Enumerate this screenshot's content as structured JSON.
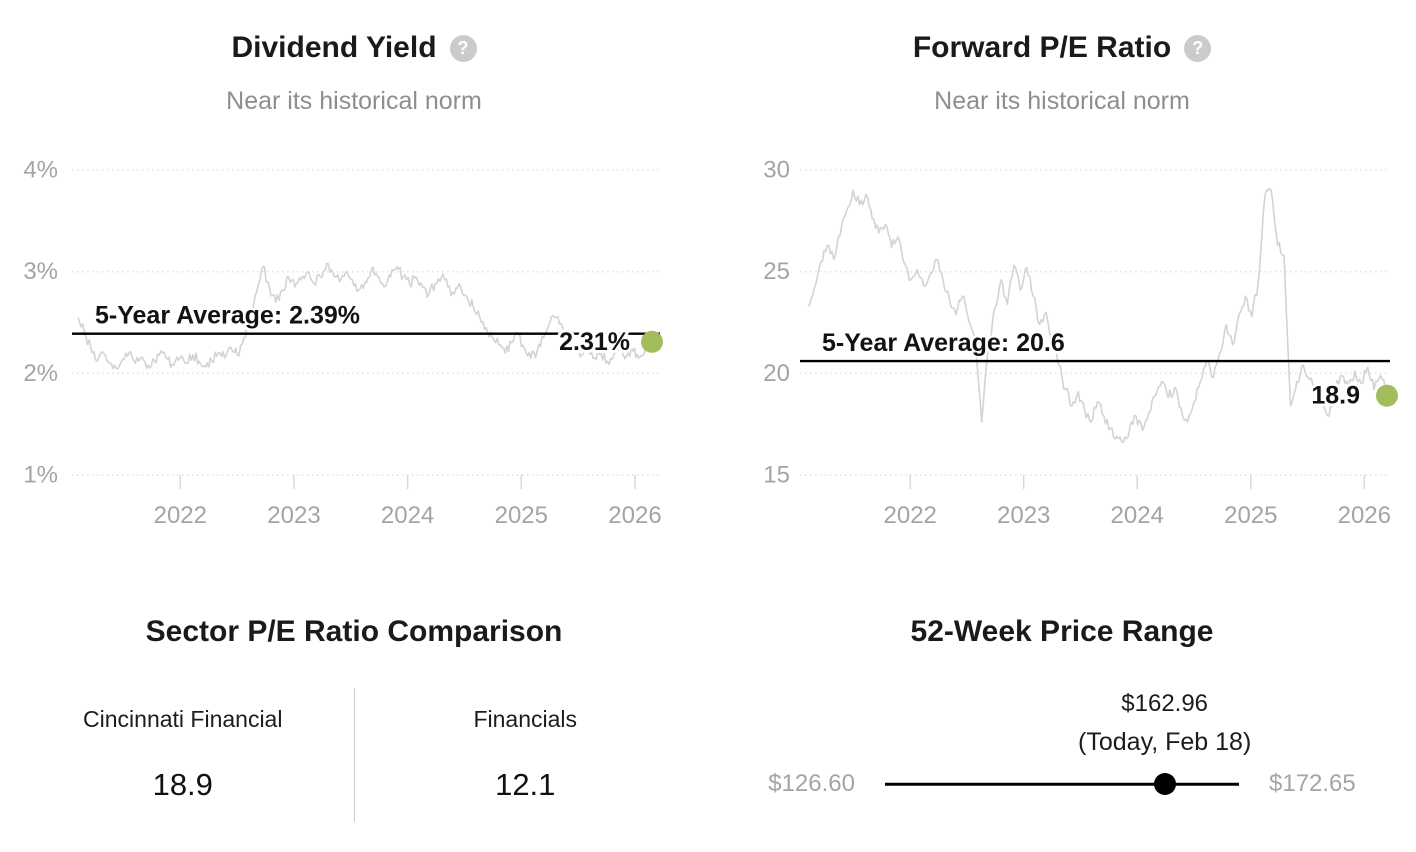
{
  "accent_green": "#a3bd5a",
  "chart_data": [
    {
      "type": "line",
      "title": "Dividend Yield",
      "subtitle": "Near its historical norm",
      "help_icon": "?",
      "x_ticks": [
        "2022",
        "2023",
        "2024",
        "2025",
        "2026"
      ],
      "x_tick_values": [
        2022,
        2023,
        2024,
        2025,
        2026
      ],
      "y_ticks": [
        "4%",
        "3%",
        "2%",
        "1%"
      ],
      "y_tick_values": [
        4,
        3,
        2,
        1
      ],
      "ylim": [
        1,
        4
      ],
      "x_range": [
        2021.1,
        2026.15
      ],
      "grid": "dotted-horizontal",
      "legend": "none",
      "average": {
        "label": "5-Year Average: 2.39%",
        "value": 2.39
      },
      "current": {
        "label": "2.31%",
        "value": 2.31
      },
      "line_color": "#d3d3d3",
      "dot_color": "#a3bd5a",
      "seed": 1,
      "values": [
        2.55,
        2.4,
        2.25,
        2.12,
        2.2,
        2.1,
        2.05,
        2.14,
        2.2,
        2.1,
        2.16,
        2.08,
        2.12,
        2.22,
        2.14,
        2.08,
        2.15,
        2.1,
        2.18,
        2.12,
        2.06,
        2.12,
        2.2,
        2.15,
        2.25,
        2.18,
        2.35,
        2.55,
        2.8,
        3.05,
        2.85,
        2.7,
        2.82,
        2.95,
        2.85,
        2.92,
        3.0,
        2.88,
        2.95,
        3.08,
        2.98,
        2.9,
        3.0,
        2.92,
        2.82,
        2.9,
        3.02,
        2.95,
        2.85,
        2.95,
        3.05,
        2.95,
        2.88,
        2.95,
        2.85,
        2.78,
        2.88,
        2.95,
        2.85,
        2.78,
        2.85,
        2.75,
        2.65,
        2.55,
        2.45,
        2.35,
        2.28,
        2.2,
        2.3,
        2.38,
        2.25,
        2.15,
        2.22,
        2.35,
        2.5,
        2.55,
        2.45,
        2.32,
        2.22,
        2.18,
        2.25,
        2.15,
        2.2,
        2.12,
        2.18,
        2.25,
        2.17,
        2.22,
        2.15,
        2.25,
        2.31
      ]
    },
    {
      "type": "line",
      "title": "Forward P/E Ratio",
      "subtitle": "Near its historical norm",
      "help_icon": "?",
      "x_ticks": [
        "2022",
        "2023",
        "2024",
        "2025",
        "2026"
      ],
      "x_tick_values": [
        2022,
        2023,
        2024,
        2025,
        2026
      ],
      "y_ticks": [
        "30",
        "25",
        "20",
        "15"
      ],
      "y_tick_values": [
        30,
        25,
        20,
        15
      ],
      "ylim": [
        15,
        30
      ],
      "x_range": [
        2021.1,
        2026.2
      ],
      "grid": "dotted-horizontal",
      "legend": "none",
      "average": {
        "label": "5-Year Average: 20.6",
        "value": 20.6
      },
      "current": {
        "label": "18.9",
        "value": 18.9
      },
      "line_color": "#d3d3d3",
      "dot_color": "#a3bd5a",
      "seed": 2,
      "values": [
        23.3,
        24.2,
        25.5,
        26.3,
        25.6,
        26.8,
        28.0,
        29.0,
        28.3,
        28.8,
        27.6,
        26.9,
        27.3,
        26.2,
        26.7,
        25.4,
        24.6,
        25.1,
        24.3,
        24.9,
        25.6,
        24.6,
        23.6,
        22.9,
        23.8,
        22.6,
        21.4,
        17.6,
        21.2,
        23.2,
        24.6,
        23.4,
        25.3,
        24.1,
        25.2,
        23.8,
        22.4,
        23.0,
        21.6,
        20.4,
        19.2,
        18.4,
        19.1,
        18.2,
        17.6,
        18.6,
        17.9,
        17.3,
        16.9,
        16.6,
        17.3,
        17.9,
        17.2,
        18.1,
        18.9,
        19.6,
        18.8,
        19.3,
        18.3,
        17.6,
        18.6,
        19.6,
        20.6,
        19.8,
        21.0,
        22.4,
        21.4,
        22.9,
        23.8,
        22.8,
        24.5,
        28.7,
        29.0,
        26.3,
        25.8,
        18.4,
        19.6,
        20.4,
        19.7,
        19.0,
        18.4,
        17.9,
        19.3,
        19.9,
        19.3,
        20.1,
        19.5,
        20.3,
        19.2,
        19.9,
        18.9
      ]
    },
    {
      "type": "table",
      "title": "Sector P/E Ratio Comparison",
      "columns": [
        {
          "label": "Cincinnati Financial",
          "value": "18.9"
        },
        {
          "label": "Financials",
          "value": "12.1"
        }
      ]
    },
    {
      "type": "range",
      "title": "52-Week Price Range",
      "low_label": "$126.60",
      "high_label": "$172.65",
      "low": 126.6,
      "high": 172.65,
      "current": 162.96,
      "current_label": "$162.96",
      "current_sublabel": "(Today, Feb 18)",
      "position_pct": 79
    }
  ]
}
